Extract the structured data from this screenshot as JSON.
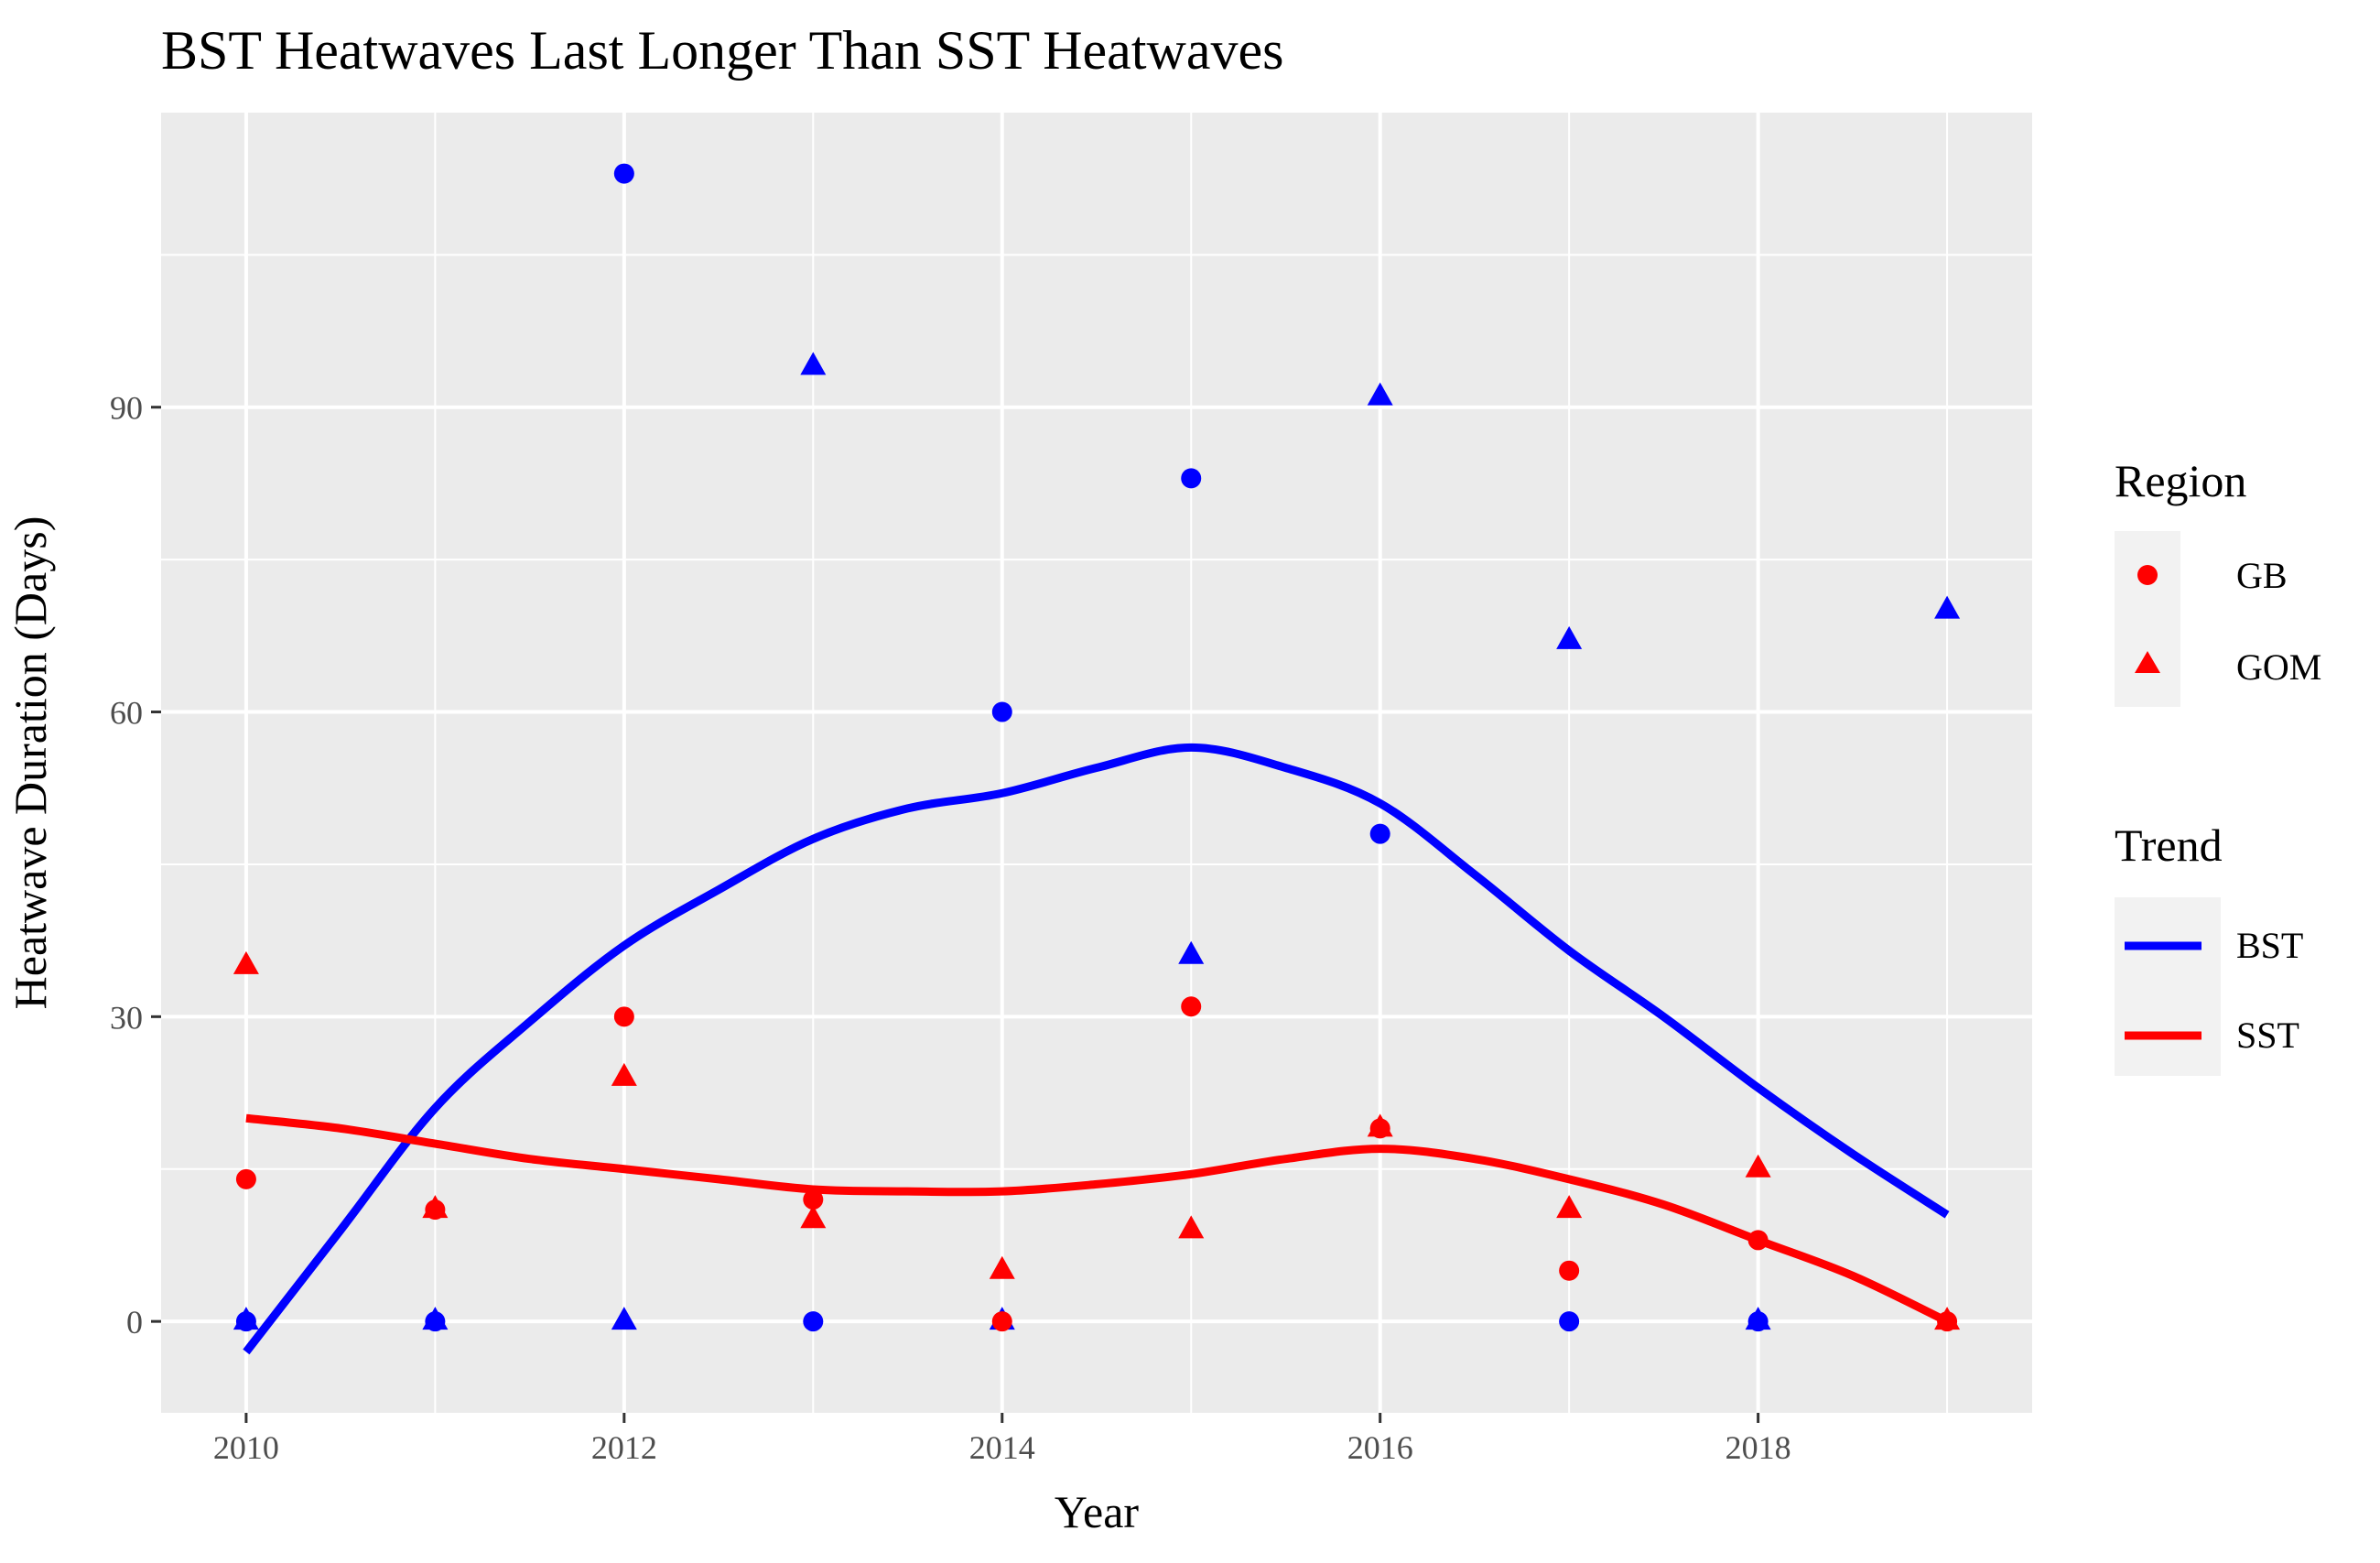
{
  "chart_data": {
    "type": "scatter",
    "title": "BST Heatwaves Last Longer Than SST Heatwaves",
    "xlabel": "Year",
    "ylabel": "Heatwave Duration (Days)",
    "xlim": [
      2009.55,
      2019.45
    ],
    "ylim": [
      -9,
      119
    ],
    "x_ticks": [
      2010,
      2012,
      2014,
      2016,
      2018
    ],
    "y_ticks": [
      0,
      30,
      60,
      90
    ],
    "grid": true,
    "legend_placement": "right",
    "colors": {
      "BST": "#0000ff",
      "SST": "#ff0000",
      "panel": "#ebebeb",
      "grid": "#ffffff"
    },
    "legends": {
      "region": {
        "title": "Region",
        "entries": [
          {
            "label": "GB",
            "shape": "circle"
          },
          {
            "label": "GOM",
            "shape": "triangle"
          }
        ]
      },
      "trend": {
        "title": "Trend",
        "entries": [
          {
            "label": "BST",
            "color": "#0000ff"
          },
          {
            "label": "SST",
            "color": "#ff0000"
          }
        ]
      }
    },
    "points": [
      {
        "trend": "BST",
        "region": "GB",
        "x": [
          2010,
          2011,
          2012,
          2013,
          2014,
          2015,
          2016,
          2017,
          2018
        ],
        "y": [
          0,
          0,
          113,
          0,
          60,
          83,
          48,
          0,
          0
        ]
      },
      {
        "trend": "BST",
        "region": "GOM",
        "x": [
          2010,
          2011,
          2012,
          2013,
          2014,
          2015,
          2016,
          2017,
          2018,
          2019
        ],
        "y": [
          0,
          0,
          0,
          94,
          0,
          36,
          91,
          67,
          0,
          70
        ]
      },
      {
        "trend": "SST",
        "region": "GB",
        "x": [
          2010,
          2011,
          2012,
          2013,
          2014,
          2015,
          2016,
          2017,
          2018,
          2019
        ],
        "y": [
          14,
          11,
          30,
          12,
          0,
          31,
          19,
          5,
          8,
          0
        ]
      },
      {
        "trend": "SST",
        "region": "GOM",
        "x": [
          2010,
          2011,
          2012,
          2013,
          2014,
          2015,
          2016,
          2017,
          2018,
          2019
        ],
        "y": [
          35,
          11,
          24,
          10,
          5,
          9,
          19,
          11,
          15,
          0
        ]
      }
    ],
    "trend_lines": [
      {
        "trend": "BST",
        "x": [
          2010,
          2010.5,
          2011,
          2011.5,
          2012,
          2012.5,
          2013,
          2013.5,
          2014,
          2014.5,
          2015,
          2015.5,
          2016,
          2016.5,
          2017,
          2017.5,
          2018,
          2018.5,
          2019
        ],
        "y": [
          -3,
          9,
          21,
          29.5,
          37,
          42.5,
          47.5,
          50.5,
          52,
          54.5,
          56.5,
          54.5,
          51,
          44,
          36.5,
          30,
          23,
          16.5,
          10.5
        ]
      },
      {
        "trend": "SST",
        "x": [
          2010,
          2010.5,
          2011,
          2011.5,
          2012,
          2012.5,
          2013,
          2013.5,
          2014,
          2014.5,
          2015,
          2015.5,
          2016,
          2016.5,
          2017,
          2017.5,
          2018,
          2018.5,
          2019
        ],
        "y": [
          20,
          19,
          17.5,
          16,
          15,
          14,
          13,
          12.8,
          12.8,
          13.5,
          14.5,
          16,
          17,
          16,
          14,
          11.5,
          8,
          4.5,
          0
        ]
      }
    ]
  }
}
